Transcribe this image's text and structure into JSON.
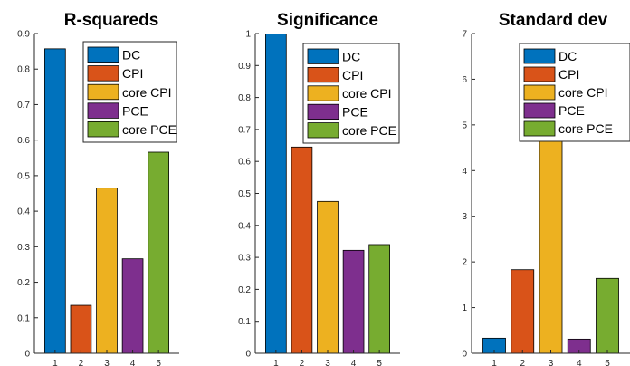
{
  "series_names": [
    "DC",
    "CPI",
    "core CPI",
    "PCE",
    "core PCE"
  ],
  "colors": [
    "#0072BD",
    "#D95319",
    "#EDB120",
    "#7E2F8E",
    "#77AC30"
  ],
  "chart_data": [
    {
      "type": "bar",
      "title": "R-squareds",
      "categories": [
        "1",
        "2",
        "3",
        "4",
        "5"
      ],
      "values": [
        0.857,
        0.135,
        0.465,
        0.266,
        0.566
      ],
      "ylim": [
        0,
        0.9
      ],
      "yticks": [
        0,
        0.1,
        0.2,
        0.3,
        0.4,
        0.5,
        0.6,
        0.7,
        0.8,
        0.9
      ],
      "ytick_labels": [
        "0",
        "0.1",
        "0.2",
        "0.3",
        "0.4",
        "0.5",
        "0.6",
        "0.7",
        "0.8",
        "0.9"
      ],
      "legend": [
        "DC",
        "CPI",
        "core CPI",
        "PCE",
        "core PCE"
      ],
      "legend_position": "top-right",
      "grid": false
    },
    {
      "type": "bar",
      "title": "Significance",
      "categories": [
        "1",
        "2",
        "3",
        "4",
        "5"
      ],
      "values": [
        1.0,
        0.645,
        0.475,
        0.322,
        0.34
      ],
      "ylim": [
        0,
        1
      ],
      "yticks": [
        0,
        0.1,
        0.2,
        0.3,
        0.4,
        0.5,
        0.6,
        0.7,
        0.8,
        0.9,
        1
      ],
      "ytick_labels": [
        "0",
        "0.1",
        "0.2",
        "0.3",
        "0.4",
        "0.5",
        "0.6",
        "0.7",
        "0.8",
        "0.9",
        "1"
      ],
      "legend": [
        "DC",
        "CPI",
        "core CPI",
        "PCE",
        "core PCE"
      ],
      "legend_position": "top-right",
      "grid": false
    },
    {
      "type": "bar",
      "title": "Standard dev",
      "categories": [
        "1",
        "2",
        "3",
        "4",
        "5"
      ],
      "values": [
        0.33,
        1.83,
        5.4,
        0.31,
        1.64
      ],
      "ylim": [
        0,
        7
      ],
      "yticks": [
        0,
        1,
        2,
        3,
        4,
        5,
        6,
        7
      ],
      "ytick_labels": [
        "0",
        "1",
        "2",
        "3",
        "4",
        "5",
        "6",
        "7"
      ],
      "legend": [
        "DC",
        "CPI",
        "core CPI",
        "PCE",
        "core PCE"
      ],
      "legend_position": "top-right",
      "grid": false
    }
  ]
}
